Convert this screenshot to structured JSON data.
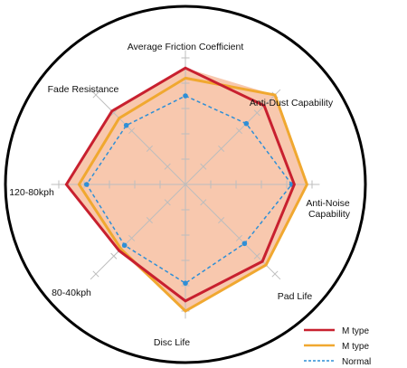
{
  "chart_data": {
    "type": "radar",
    "title": "",
    "axes": [
      "Average Friction Coefficient",
      "Anti-Dust Capability",
      "Anti-Noise Capability",
      "Pad Life",
      "Disc Life",
      "80-40kph",
      "120-80kph",
      "Fade Resistance"
    ],
    "scale_max": 5,
    "series": [
      {
        "name": "M type",
        "color": "#c8202f",
        "dash": false,
        "values": [
          4.6,
          4.4,
          4.3,
          4.3,
          4.6,
          3.7,
          4.7,
          4.1
        ]
      },
      {
        "name": "M type",
        "color": "#f0a830",
        "dash": false,
        "values": [
          4.2,
          5.0,
          4.8,
          4.5,
          5.0,
          3.6,
          4.2,
          3.7
        ]
      },
      {
        "name": "Normal",
        "color": "#2e8fd6",
        "dash": true,
        "values": [
          3.5,
          3.4,
          4.2,
          3.3,
          3.9,
          3.4,
          3.9,
          3.3
        ]
      }
    ],
    "fill_color": "#f8c8ae",
    "grid": true,
    "legend_position": "bottom-right"
  }
}
